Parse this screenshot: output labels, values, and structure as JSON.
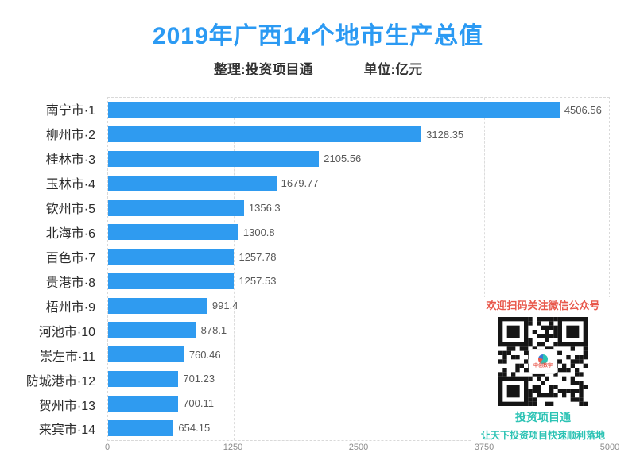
{
  "title": {
    "text": "2019年广西14个地市生产总值",
    "color": "#2b9af3"
  },
  "subtitle": {
    "source": "整理:投资项目通",
    "unit": "单位:亿元"
  },
  "chart_data": {
    "type": "bar",
    "orientation": "horizontal",
    "title": "2019年广西14个地市生产总值",
    "unit": "亿元",
    "categories": [
      "南宁市·1",
      "柳州市·2",
      "桂林市·3",
      "玉林市·4",
      "钦州市·5",
      "北海市·6",
      "百色市·7",
      "贵港市·8",
      "梧州市·9",
      "河池市·10",
      "崇左市·11",
      "防城港市·12",
      "贺州市·13",
      "来宾市·14"
    ],
    "values": [
      4506.56,
      3128.35,
      2105.56,
      1679.77,
      1356.3,
      1300.8,
      1257.78,
      1257.53,
      991.4,
      878.1,
      760.46,
      701.23,
      700.11,
      654.15
    ],
    "xlim": [
      0,
      5000
    ],
    "x_ticks": [
      0,
      1250,
      2500,
      3750,
      5000
    ],
    "bar_color": "#2f9bf0",
    "grid": true,
    "grid_style": "dashed",
    "legend": false,
    "value_labels": true
  },
  "qr_panel": {
    "heading": "欢迎扫码关注微信公众号",
    "brand": "投资项目通",
    "slogan": "让天下投资项目快速顺利落地",
    "logo_text": "中创数字",
    "heading_color": "#e8584c",
    "accent_color": "#2cc3b4"
  }
}
